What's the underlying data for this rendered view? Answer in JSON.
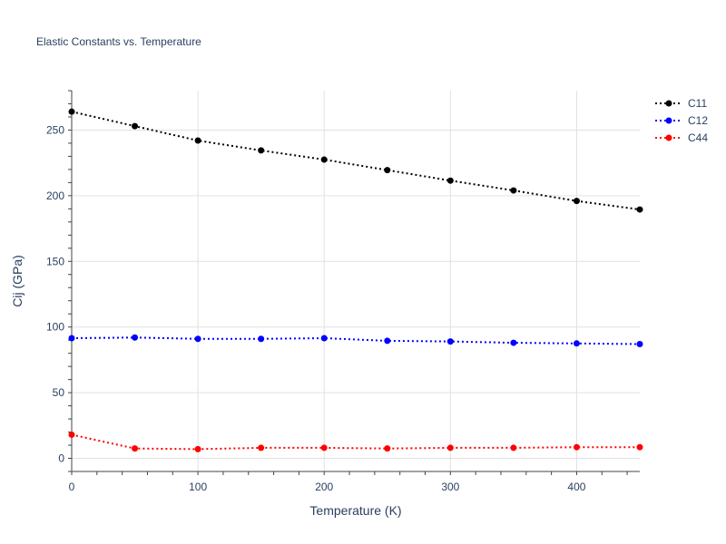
{
  "chart_data": {
    "type": "line",
    "title": "Elastic Constants vs. Temperature",
    "xlabel": "Temperature (K)",
    "ylabel": "Cij (GPa)",
    "xlim": [
      0,
      450
    ],
    "ylim": [
      -10,
      280
    ],
    "xticks": [
      0,
      100,
      200,
      300,
      400
    ],
    "yticks": [
      0,
      50,
      100,
      150,
      200,
      250
    ],
    "grid": true,
    "legend_position": "top-right",
    "x": [
      0,
      50,
      100,
      150,
      200,
      250,
      300,
      350,
      400,
      450
    ],
    "series": [
      {
        "name": "C11",
        "color": "#000000",
        "values": [
          264,
          253,
          242,
          234.5,
          227.5,
          219.5,
          211.5,
          204,
          196,
          189.5
        ]
      },
      {
        "name": "C12",
        "color": "#0000ff",
        "values": [
          91.5,
          92,
          91,
          91,
          91.5,
          89.5,
          89,
          88,
          87.5,
          87
        ]
      },
      {
        "name": "C44",
        "color": "#ff0000",
        "values": [
          18,
          7.5,
          7,
          8,
          8,
          7.5,
          8,
          8,
          8.5,
          8.5
        ]
      }
    ]
  }
}
